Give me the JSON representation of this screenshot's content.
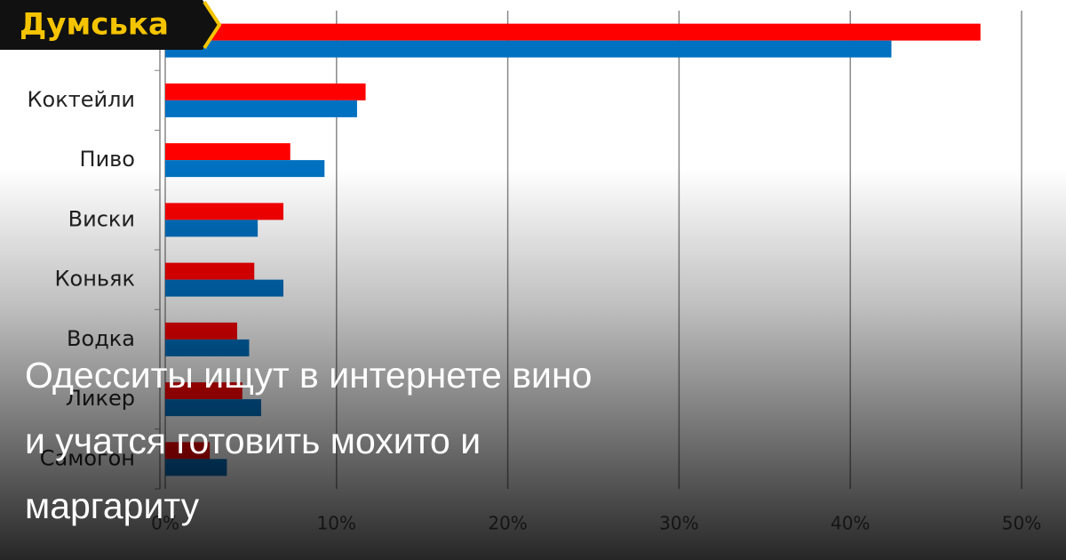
{
  "logo": "Думська",
  "headline": [
    "Одесситы ищут в интернете вино",
    "и учатся готовить мохито и",
    "маргариту"
  ],
  "chart_data": {
    "type": "hbar",
    "categories": [
      null,
      "Коктейли",
      "Пиво",
      "Виски",
      "Коньяк",
      "Водка",
      "Ликер",
      "Самогон"
    ],
    "series": [
      {
        "color": "#ff0000",
        "values": [
          47.6,
          11.7,
          7.3,
          6.9,
          5.2,
          4.2,
          4.5,
          2.6
        ]
      },
      {
        "color": "#0070c0",
        "values": [
          42.4,
          11.2,
          9.3,
          5.4,
          6.9,
          4.9,
          5.6,
          3.6
        ]
      }
    ],
    "xlim": [
      0,
      50
    ],
    "xticks": [
      {
        "value": 0,
        "label": "0%"
      },
      {
        "value": 10,
        "label": "10%"
      },
      {
        "value": 20,
        "label": "20%"
      },
      {
        "value": 30,
        "label": "30%"
      },
      {
        "value": 40,
        "label": "40%"
      },
      {
        "value": 50,
        "label": "50%"
      }
    ],
    "grid": true
  }
}
